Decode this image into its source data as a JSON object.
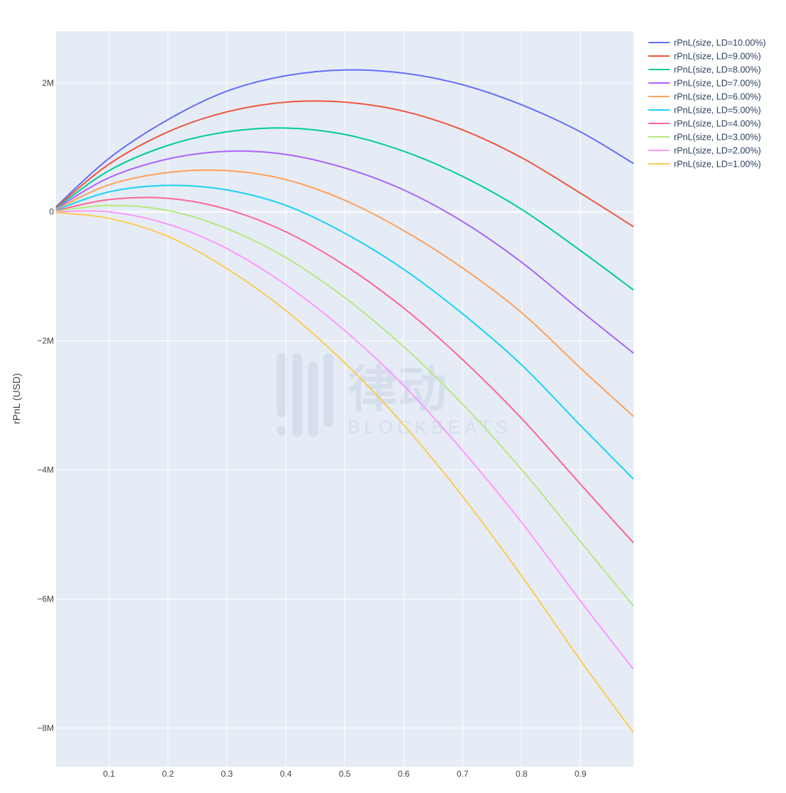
{
  "chart_data": {
    "type": "line",
    "title": "",
    "xlabel": "",
    "ylabel": "rPnL (USD)",
    "xlim": [
      0.01,
      0.99
    ],
    "ylim": [
      -8.6,
      2.8
    ],
    "x_ticks": [
      0.1,
      0.2,
      0.3,
      0.4,
      0.5,
      0.6,
      0.7,
      0.8,
      0.9
    ],
    "x_tick_labels": [
      "0.1",
      "0.2",
      "0.3",
      "0.4",
      "0.5",
      "0.6",
      "0.7",
      "0.8",
      "0.9"
    ],
    "y_ticks": [
      2,
      0,
      -2,
      -4,
      -6,
      -8
    ],
    "y_tick_labels": [
      "2M",
      "0",
      "−2M",
      "−4M",
      "−6M",
      "−8M"
    ],
    "y_unit_note": "values in millions of USD",
    "grid": true,
    "legend_position": "top-right-outside",
    "watermark": {
      "text": "律动",
      "subtext": "BLOCKBEATS",
      "icon_name": "blockbeats-logo-icon"
    },
    "x": [
      0.01,
      0.1,
      0.2,
      0.3,
      0.4,
      0.5,
      0.6,
      0.7,
      0.8,
      0.9,
      0.99
    ],
    "series": [
      {
        "name": "rPnL(size, LD=10.00%)",
        "color": "#636efa",
        "values": [
          0.08,
          0.83,
          1.43,
          1.87,
          2.11,
          2.2,
          2.15,
          1.97,
          1.66,
          1.24,
          0.75
        ]
      },
      {
        "name": "rPnL(size, LD=9.00%)",
        "color": "#ef553b",
        "values": [
          0.07,
          0.74,
          1.24,
          1.55,
          1.7,
          1.7,
          1.56,
          1.27,
          0.84,
          0.29,
          -0.23
        ]
      },
      {
        "name": "rPnL(size, LD=8.00%)",
        "color": "#00cc96",
        "values": [
          0.06,
          0.64,
          1.03,
          1.24,
          1.3,
          1.2,
          0.94,
          0.55,
          0.04,
          -0.6,
          -1.21
        ]
      },
      {
        "name": "rPnL(size, LD=7.00%)",
        "color": "#ab63fa",
        "values": [
          0.05,
          0.53,
          0.82,
          0.94,
          0.89,
          0.68,
          0.34,
          -0.15,
          -0.78,
          -1.53,
          -2.19
        ]
      },
      {
        "name": "rPnL(size, LD=6.00%)",
        "color": "#ffa15a",
        "values": [
          0.04,
          0.42,
          0.61,
          0.64,
          0.5,
          0.18,
          -0.29,
          -0.87,
          -1.56,
          -2.42,
          -3.17
        ]
      },
      {
        "name": "rPnL(size, LD=5.00%)",
        "color": "#19d3f3",
        "values": [
          0.03,
          0.31,
          0.41,
          0.34,
          0.1,
          -0.33,
          -0.89,
          -1.58,
          -2.37,
          -3.31,
          -4.14
        ]
      },
      {
        "name": "rPnL(size, LD=4.00%)",
        "color": "#ff6692",
        "values": [
          0.02,
          0.19,
          0.21,
          0.04,
          -0.31,
          -0.83,
          -1.49,
          -2.29,
          -3.2,
          -4.22,
          -5.13
        ]
      },
      {
        "name": "rPnL(size, LD=3.00%)",
        "color": "#b6e880",
        "values": [
          0.01,
          0.1,
          0.02,
          -0.26,
          -0.71,
          -1.33,
          -2.09,
          -2.98,
          -3.99,
          -5.11,
          -6.11
        ]
      },
      {
        "name": "rPnL(size, LD=2.00%)",
        "color": "#ff97ff",
        "values": [
          0.0,
          0.0,
          -0.19,
          -0.57,
          -1.13,
          -1.84,
          -2.69,
          -3.7,
          -4.81,
          -6.03,
          -7.09
        ]
      },
      {
        "name": "rPnL(size, LD=1.00%)",
        "color": "#fecb52",
        "values": [
          -0.01,
          -0.1,
          -0.38,
          -0.88,
          -1.53,
          -2.34,
          -3.3,
          -4.41,
          -5.64,
          -6.95,
          -8.07
        ]
      }
    ]
  }
}
